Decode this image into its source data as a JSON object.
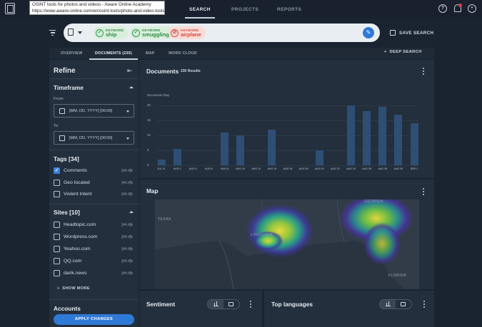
{
  "browser_tooltip": {
    "title": "OSINT tools for photos and videos - Aware Online Academy",
    "url": "https://www.aware-online.com/en/osint-tools/photo-and-video-tools/"
  },
  "nav": {
    "search": "SEARCH",
    "projects": "PROJECTS",
    "reports": "REPORTS"
  },
  "header_icons": [
    "help-icon",
    "bell-icon",
    "account-icon"
  ],
  "search": {
    "chips": [
      {
        "type": "KEYWORD",
        "value": "ship",
        "status": "include",
        "color": "#2f8a44"
      },
      {
        "type": "KEYWORD",
        "value": "smuggling",
        "status": "include",
        "color": "#2f8a44"
      },
      {
        "type": "KEYWORD",
        "value": "airplane",
        "status": "exclude",
        "color": "#d9473a"
      }
    ],
    "save_label": "SAVE SEARCH"
  },
  "tabs": [
    {
      "label": "OVERVIEW"
    },
    {
      "label": "DOCUMENTS (230)",
      "active": true
    },
    {
      "label": "MAP"
    },
    {
      "label": "WORD CLOUD"
    }
  ],
  "deep_search": "DEEP SEARCH",
  "refine": {
    "title": "Refine",
    "timeframe": {
      "title": "Timeframe",
      "from_label": "From",
      "from_value": "[MM, DD, YYYY] [00:00]",
      "to_label": "To",
      "to_value": "[MM, DD, YYYY] [00:00]"
    },
    "tags": {
      "title": "Tags [34]",
      "items": [
        {
          "label": "Comments",
          "count": "[##.#]k",
          "checked": true
        },
        {
          "label": "Geo located",
          "count": "[##.#]k",
          "checked": false
        },
        {
          "label": "Violent Intent",
          "count": "[##.#]k",
          "checked": false
        }
      ]
    },
    "sites": {
      "title": "Sites [10]",
      "items": [
        {
          "label": "Headtopic.com",
          "count": "[##.#]k"
        },
        {
          "label": "Wordpress.com",
          "count": "[##.#]k"
        },
        {
          "label": "Yeahoo.com",
          "count": "[##.#]k"
        },
        {
          "label": "QQ.com",
          "count": "[##.#]k"
        },
        {
          "label": "darik.news",
          "count": "[##.#]k"
        }
      ],
      "show_more": "SHOW MORE"
    },
    "accounts_title": "Accounts",
    "apply_label": "APPLY CHANGES"
  },
  "documents_card": {
    "title": "Documents",
    "results": "230 Results"
  },
  "chart_data": {
    "type": "bar",
    "ylabel": "Documents /Day",
    "ylim": [
      0,
      20
    ],
    "yticks": [
      0,
      5,
      10,
      15,
      20
    ],
    "categories": [
      "JUL 31",
      "AUG 2",
      "AUG 4",
      "AUG 6",
      "AUG 8",
      "AUG 10",
      "AUG 12",
      "AUG 14",
      "AUG 16",
      "AUG 18",
      "AUG 20",
      "AUG 22",
      "AUG 24",
      "AUG 26",
      "AUG 28",
      "AUG 30",
      "SEP 1"
    ],
    "values": [
      2,
      5.5,
      0,
      0,
      11,
      10,
      0,
      12,
      0,
      0,
      5,
      0,
      20,
      18,
      19.5,
      17,
      14
    ],
    "bar_color": "#2e4e74"
  },
  "map_card": {
    "title": "Map",
    "labels": {
      "texas": "TEXAS",
      "louisiana": "LOUISIANA",
      "georgia": "GEORGIA",
      "florida": "FLORIDA"
    }
  },
  "sentiment_card": {
    "title": "Sentiment"
  },
  "languages_card": {
    "title": "Top languages"
  }
}
